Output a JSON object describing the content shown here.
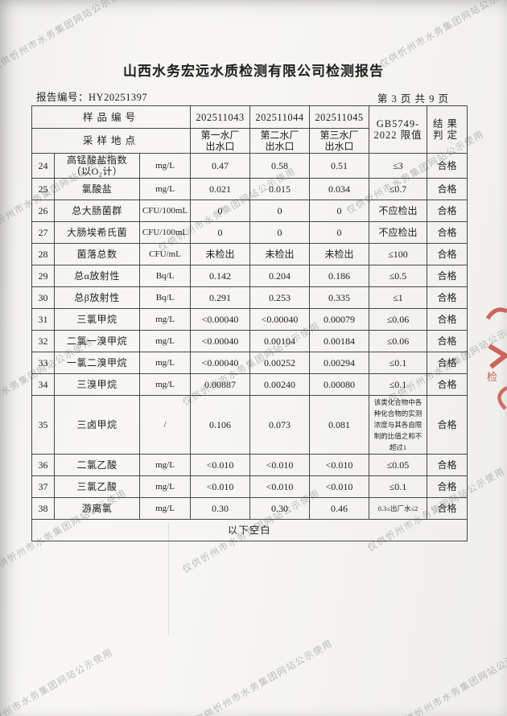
{
  "page": {
    "title": "山西水务宏远水质检测有限公司检测报告",
    "report_no_label": "报告编号：",
    "report_no": "HY20251397",
    "page_indicator": "第 3 页 共 9 页"
  },
  "watermark": {
    "text": "仅供忻州市水务集团网站公示使用",
    "color": "#767676"
  },
  "stamp": {
    "char": "检",
    "color": "#c2423a"
  },
  "table": {
    "header": {
      "row1_label": "样品编号",
      "row2_label": "采样地点",
      "sample_ids": [
        "202511043",
        "202511044",
        "202511045"
      ],
      "sample_sites": [
        "第一水厂\n出水口",
        "第二水厂\n出水口",
        "第三水厂\n出水口"
      ],
      "limit_header": "GB5749-\n2022 限值",
      "result_header": "结果\n判定"
    },
    "rows": [
      {
        "no": "24",
        "name": "高锰酸盐指数\n（以O₂计）",
        "unit": "mg/L",
        "values": [
          "0.47",
          "0.58",
          "0.51"
        ],
        "limit": "≤3",
        "result": "合格"
      },
      {
        "no": "25",
        "name": "氯酸盐",
        "unit": "mg/L",
        "values": [
          "0.021",
          "0.015",
          "0.034"
        ],
        "limit": "≤0.7",
        "result": "合格"
      },
      {
        "no": "26",
        "name": "总大肠菌群",
        "unit": "CFU/100mL",
        "values": [
          "0",
          "0",
          "0"
        ],
        "limit": "不应检出",
        "result": "合格"
      },
      {
        "no": "27",
        "name": "大肠埃希氏菌",
        "unit": "CFU/100mL",
        "values": [
          "0",
          "0",
          "0"
        ],
        "limit": "不应检出",
        "result": "合格"
      },
      {
        "no": "28",
        "name": "菌落总数",
        "unit": "CFU/mL",
        "values": [
          "未检出",
          "未检出",
          "未检出"
        ],
        "limit": "≤100",
        "result": "合格"
      },
      {
        "no": "29",
        "name": "总α放射性",
        "unit": "Bq/L",
        "values": [
          "0.142",
          "0.204",
          "0.186"
        ],
        "limit": "≤0.5",
        "result": "合格"
      },
      {
        "no": "30",
        "name": "总β放射性",
        "unit": "Bq/L",
        "values": [
          "0.291",
          "0.253",
          "0.335"
        ],
        "limit": "≤1",
        "result": "合格"
      },
      {
        "no": "31",
        "name": "三氯甲烷",
        "unit": "mg/L",
        "values": [
          "<0.00040",
          "<0.00040",
          "0.00079"
        ],
        "limit": "≤0.06",
        "result": "合格"
      },
      {
        "no": "32",
        "name": "二氯一溴甲烷",
        "unit": "mg/L",
        "values": [
          "<0.00040",
          "0.00104",
          "0.00184"
        ],
        "limit": "≤0.06",
        "result": "合格"
      },
      {
        "no": "33",
        "name": "一氯二溴甲烷",
        "unit": "mg/L",
        "values": [
          "<0.00040",
          "0.00252",
          "0.00294"
        ],
        "limit": "≤0.1",
        "result": "合格"
      },
      {
        "no": "34",
        "name": "三溴甲烷",
        "unit": "mg/L",
        "values": [
          "0.00887",
          "0.00240",
          "0.00080"
        ],
        "limit": "≤0.1",
        "result": "合格"
      },
      {
        "no": "35",
        "name": "三卤甲烷",
        "unit": "/",
        "values": [
          "0.106",
          "0.073",
          "0.081"
        ],
        "limit": "该类化合物中各种化合物的实测浓度与其各自限制的比值之和不超过1",
        "result": "合格"
      },
      {
        "no": "36",
        "name": "二氯乙酸",
        "unit": "mg/L",
        "values": [
          "<0.010",
          "<0.010",
          "<0.010"
        ],
        "limit": "≤0.05",
        "result": "合格"
      },
      {
        "no": "37",
        "name": "三氯乙酸",
        "unit": "mg/L",
        "values": [
          "<0.010",
          "<0.010",
          "<0.010"
        ],
        "limit": "≤0.1",
        "result": "合格"
      },
      {
        "no": "38",
        "name": "游离氯",
        "unit": "mg/L",
        "values": [
          "0.30",
          "0.30",
          "0.46"
        ],
        "limit": "0.3≤出厂水≤2",
        "result": "合格"
      }
    ],
    "footer_note": "以下空白"
  }
}
